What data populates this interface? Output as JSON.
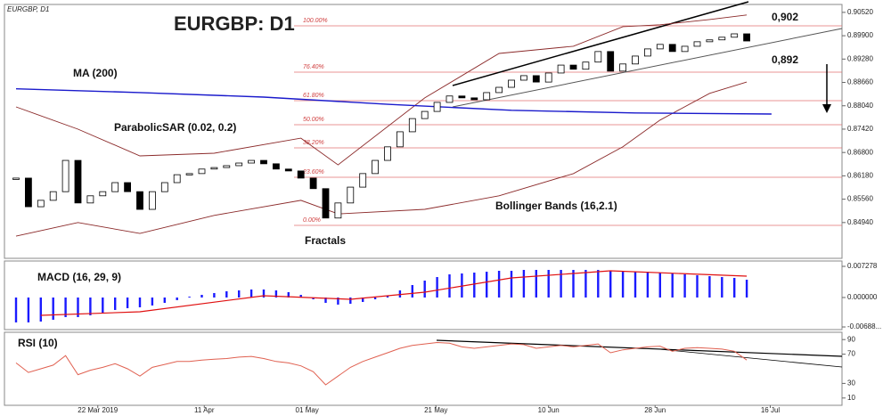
{
  "chart_data": [
    {
      "type": "candlestick",
      "title": "EURGBP: D1",
      "subtitle": "EURGBP, D1",
      "values": [
        0.8612,
        0.8536,
        0.8553,
        0.8576,
        0.8659,
        0.8546,
        0.8565,
        0.8576,
        0.86,
        0.8576,
        0.8529,
        0.8576,
        0.86,
        0.8621,
        0.8624,
        0.8636,
        0.864,
        0.8645,
        0.8652,
        0.8659,
        0.865,
        0.8636,
        0.8631,
        0.8612,
        0.8584,
        0.8506,
        0.8546,
        0.8588,
        0.8624,
        0.8659,
        0.8695,
        0.8735,
        0.877,
        0.8789,
        0.8813,
        0.883,
        0.8825,
        0.882,
        0.8839,
        0.8853,
        0.8872,
        0.8884,
        0.8867,
        0.8891,
        0.8912,
        0.8901,
        0.892,
        0.8948,
        0.8896,
        0.8915,
        0.8936,
        0.8955,
        0.8967,
        0.8948,
        0.8962,
        0.8974,
        0.8979,
        0.8986,
        0.8995,
        0.8976
      ],
      "lines": [
        {
          "name": "MA (200)",
          "color": "#1a1acc",
          "x": [
            0,
            10,
            20,
            30,
            40,
            50,
            61
          ],
          "values": [
            0.8849,
            0.8839,
            0.8827,
            0.8808,
            0.8792,
            0.8785,
            0.8782
          ]
        }
      ],
      "bollinger": {
        "name": "Bollinger Bands (16,2.1)",
        "color": "#8b2a2a",
        "x": [
          0,
          5,
          10,
          16,
          23,
          26,
          33,
          39,
          45,
          49,
          52,
          56,
          59
        ],
        "upper": [
          0.8801,
          0.8742,
          0.8671,
          0.8678,
          0.8718,
          0.8647,
          0.8825,
          0.8943,
          0.8962,
          0.9014,
          0.9019,
          0.9033,
          0.9045
        ],
        "lower": [
          0.8458,
          0.8494,
          0.8465,
          0.8513,
          0.8553,
          0.8517,
          0.8529,
          0.8565,
          0.8624,
          0.8695,
          0.8766,
          0.8837,
          0.8867
        ]
      },
      "fib_levels": [
        "100.00%",
        "76.40%",
        "61.80%",
        "50.00%",
        "38.20%",
        "23.60%",
        "0.00%"
      ],
      "annotations": [
        "ParabolicSAR (0.02, 0.2)",
        "Fractals",
        "0,902",
        "0,892"
      ],
      "ylim": [
        0.8399,
        0.9073
      ],
      "yticks": [
        {
          "value": 0.9052,
          "label": "0.90520"
        },
        {
          "value": 0.899,
          "label": "0.89900"
        },
        {
          "value": 0.8928,
          "label": "0.89280"
        },
        {
          "value": 0.8866,
          "label": "0.88660"
        },
        {
          "value": 0.8804,
          "label": "0.88040"
        },
        {
          "value": 0.8742,
          "label": "0.87420"
        },
        {
          "value": 0.868,
          "label": "0.86800"
        },
        {
          "value": 0.8618,
          "label": "0.86180"
        },
        {
          "value": 0.8556,
          "label": "0.85560"
        },
        {
          "value": 0.8494,
          "label": "0.84940"
        }
      ],
      "xticks": [
        {
          "value": 6.6,
          "label": "22 Mar 2019"
        },
        {
          "value": 15.2,
          "label": "11 Apr"
        },
        {
          "value": 23.5,
          "label": "01 May"
        },
        {
          "value": 33.9,
          "label": "21 May"
        },
        {
          "value": 43,
          "label": "10 Jun"
        },
        {
          "value": 51.6,
          "label": "28 Jun"
        },
        {
          "value": 60.9,
          "label": "16 Jul"
        }
      ]
    },
    {
      "type": "bar",
      "title": "MACD (16, 29, 9)",
      "color": "#1a1aff",
      "values": [
        -0.00582,
        -0.00582,
        -0.00562,
        -0.0052,
        -0.00458,
        -0.00458,
        -0.00416,
        -0.00354,
        -0.00291,
        -0.0025,
        -0.00229,
        -0.00187,
        -0.00125,
        -0.00062,
        0.00021,
        0.00062,
        0.00104,
        0.00146,
        0.00166,
        0.00187,
        0.00187,
        0.00166,
        0.00125,
        0.00062,
        -0.00042,
        -0.00125,
        -0.00166,
        -0.00146,
        -0.00104,
        -0.00042,
        0.00042,
        0.00166,
        0.00291,
        0.00395,
        0.00478,
        0.00541,
        0.00562,
        0.00582,
        0.00603,
        0.00624,
        0.00624,
        0.00645,
        0.00645,
        0.00645,
        0.00645,
        0.00645,
        0.00645,
        0.00645,
        0.00624,
        0.00624,
        0.00603,
        0.00603,
        0.00582,
        0.00562,
        0.00541,
        0.0052,
        0.00499,
        0.00478,
        0.00458,
        0.00416
      ],
      "signal": {
        "color": "#e01010",
        "x": [
          2,
          10,
          20,
          27,
          33,
          40,
          48,
          59
        ],
        "values": [
          -0.00416,
          -0.00333,
          0.00042,
          -0.00042,
          0.00125,
          0.00458,
          0.00624,
          0.00499
        ]
      },
      "ylim": [
        -0.0075,
        0.00853
      ],
      "yticks": [
        0.007278,
        {
          "value": 0,
          "label": "0.000000"
        },
        {
          "value": -0.00688,
          "label": "-0.00688..."
        }
      ]
    },
    {
      "type": "line",
      "title": "RSI (10)",
      "color": "#e06050",
      "values": [
        58,
        45,
        50,
        55,
        68,
        42,
        48,
        52,
        57,
        50,
        40,
        52,
        56,
        60,
        60,
        62,
        63,
        64,
        66,
        67,
        64,
        60,
        58,
        54,
        46,
        28,
        40,
        52,
        60,
        66,
        72,
        78,
        82,
        84,
        86,
        85,
        80,
        78,
        80,
        82,
        84,
        83,
        78,
        80,
        82,
        80,
        82,
        84,
        72,
        76,
        78,
        80,
        81,
        74,
        78,
        79,
        78,
        77,
        74,
        62
      ],
      "ylim": [
        0,
        100
      ],
      "yticks": [
        90,
        70,
        30,
        10
      ]
    }
  ]
}
